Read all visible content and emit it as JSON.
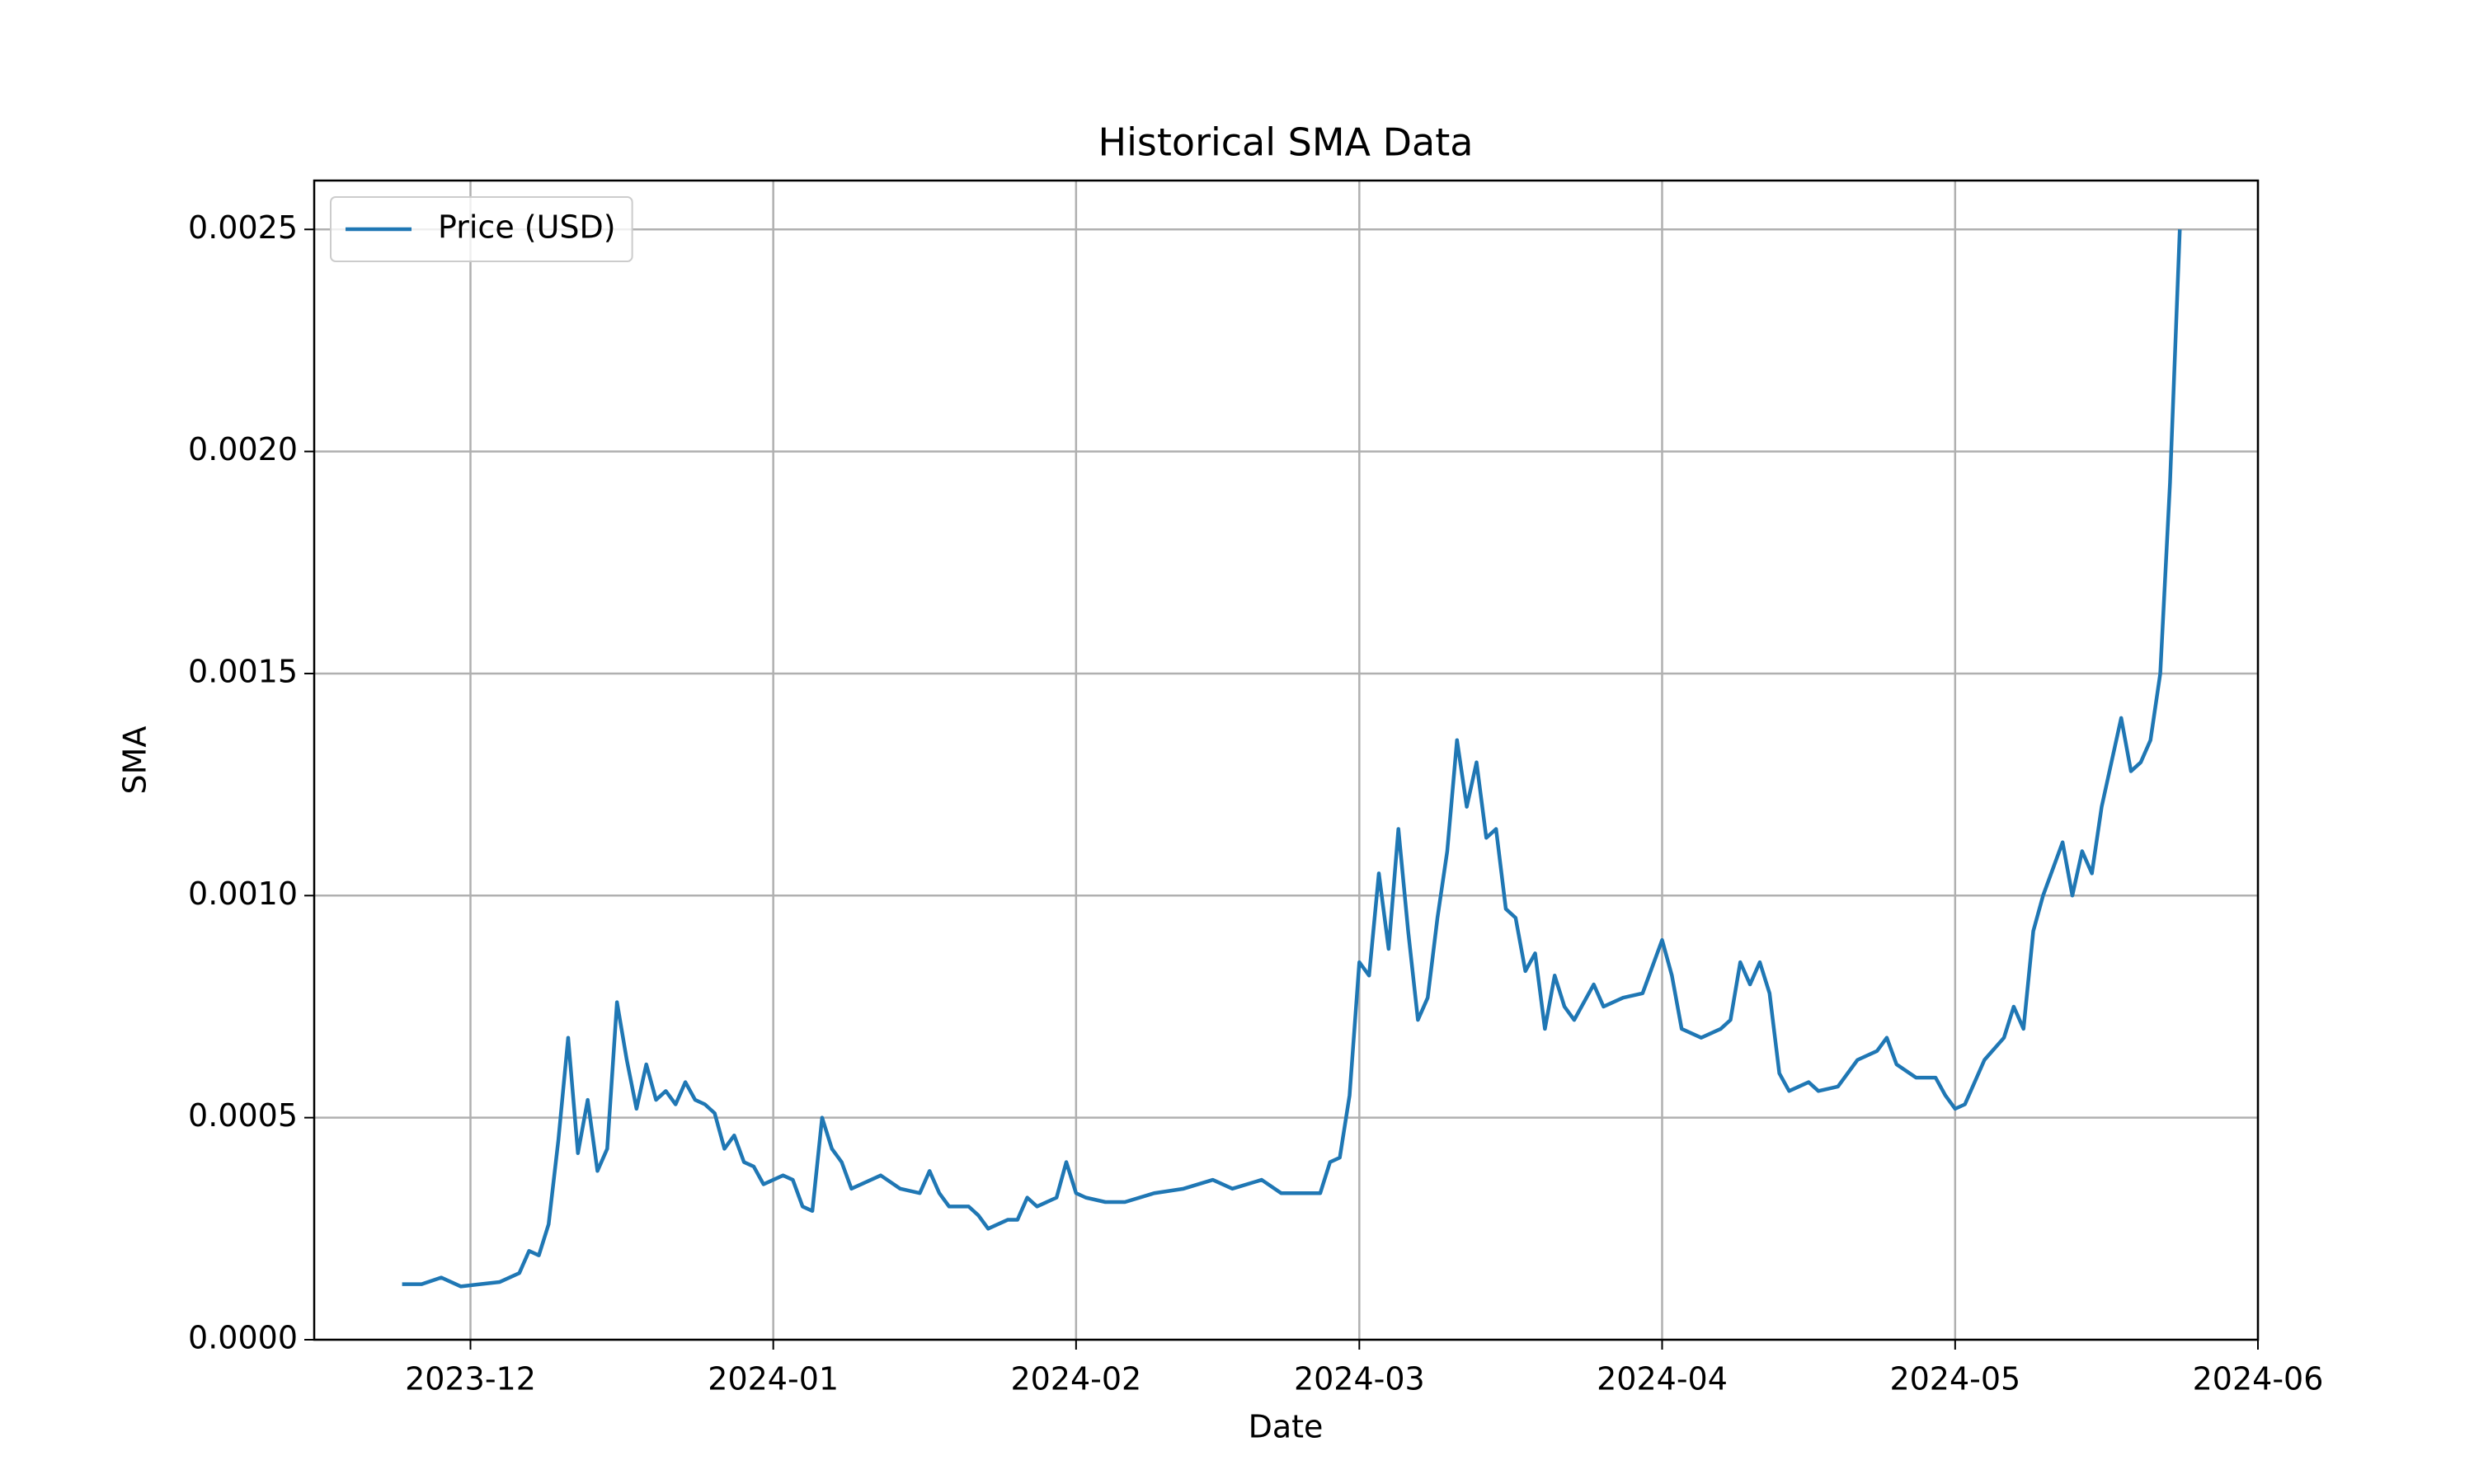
{
  "chart_data": {
    "type": "line",
    "title": "Historical SMA Data",
    "xlabel": "Date",
    "ylabel": "SMA",
    "x": [
      "2023-11-24",
      "2023-11-26",
      "2023-11-28",
      "2023-11-30",
      "2023-12-02",
      "2023-12-04",
      "2023-12-06",
      "2023-12-07",
      "2023-12-08",
      "2023-12-09",
      "2023-12-10",
      "2023-12-11",
      "2023-12-12",
      "2023-12-13",
      "2023-12-14",
      "2023-12-15",
      "2023-12-16",
      "2023-12-17",
      "2023-12-18",
      "2023-12-19",
      "2023-12-20",
      "2023-12-21",
      "2023-12-22",
      "2023-12-23",
      "2023-12-24",
      "2023-12-25",
      "2023-12-26",
      "2023-12-27",
      "2023-12-28",
      "2023-12-29",
      "2023-12-30",
      "2023-12-31",
      "2024-01-02",
      "2024-01-03",
      "2024-01-04",
      "2024-01-05",
      "2024-01-06",
      "2024-01-07",
      "2024-01-08",
      "2024-01-09",
      "2024-01-10",
      "2024-01-12",
      "2024-01-14",
      "2024-01-16",
      "2024-01-17",
      "2024-01-18",
      "2024-01-19",
      "2024-01-21",
      "2024-01-22",
      "2024-01-23",
      "2024-01-25",
      "2024-01-26",
      "2024-01-27",
      "2024-01-28",
      "2024-01-30",
      "2024-01-31",
      "2024-02-01",
      "2024-02-02",
      "2024-02-04",
      "2024-02-06",
      "2024-02-09",
      "2024-02-12",
      "2024-02-15",
      "2024-02-17",
      "2024-02-20",
      "2024-02-22",
      "2024-02-24",
      "2024-02-26",
      "2024-02-27",
      "2024-02-28",
      "2024-02-29",
      "2024-03-01",
      "2024-03-02",
      "2024-03-03",
      "2024-03-04",
      "2024-03-05",
      "2024-03-06",
      "2024-03-07",
      "2024-03-08",
      "2024-03-09",
      "2024-03-10",
      "2024-03-11",
      "2024-03-12",
      "2024-03-13",
      "2024-03-14",
      "2024-03-15",
      "2024-03-16",
      "2024-03-17",
      "2024-03-18",
      "2024-03-19",
      "2024-03-20",
      "2024-03-21",
      "2024-03-22",
      "2024-03-23",
      "2024-03-25",
      "2024-03-26",
      "2024-03-28",
      "2024-03-30",
      "2024-04-01",
      "2024-04-02",
      "2024-04-03",
      "2024-04-05",
      "2024-04-07",
      "2024-04-08",
      "2024-04-09",
      "2024-04-10",
      "2024-04-11",
      "2024-04-12",
      "2024-04-13",
      "2024-04-14",
      "2024-04-16",
      "2024-04-17",
      "2024-04-19",
      "2024-04-21",
      "2024-04-23",
      "2024-04-24",
      "2024-04-25",
      "2024-04-27",
      "2024-04-29",
      "2024-04-30",
      "2024-05-01",
      "2024-05-02",
      "2024-05-04",
      "2024-05-06",
      "2024-05-07",
      "2024-05-08",
      "2024-05-09",
      "2024-05-10",
      "2024-05-12",
      "2024-05-13",
      "2024-05-14",
      "2024-05-15",
      "2024-05-16",
      "2024-05-17",
      "2024-05-18",
      "2024-05-19",
      "2024-05-20",
      "2024-05-21",
      "2024-05-22",
      "2024-05-23",
      "2024-05-24"
    ],
    "series": [
      {
        "name": "Price (USD)",
        "color": "#1f77b4",
        "values": [
          0.000125,
          0.000125,
          0.00014,
          0.00012,
          0.000125,
          0.00013,
          0.00015,
          0.0002,
          0.00019,
          0.00026,
          0.00045,
          0.00068,
          0.00042,
          0.00054,
          0.00038,
          0.00043,
          0.00076,
          0.00063,
          0.00052,
          0.00062,
          0.00054,
          0.00056,
          0.00053,
          0.00058,
          0.00054,
          0.00053,
          0.00051,
          0.00043,
          0.00046,
          0.0004,
          0.00039,
          0.00035,
          0.00037,
          0.00036,
          0.0003,
          0.00029,
          0.0005,
          0.00043,
          0.0004,
          0.00034,
          0.00035,
          0.00037,
          0.00034,
          0.00033,
          0.00038,
          0.00033,
          0.0003,
          0.0003,
          0.00028,
          0.00025,
          0.00027,
          0.00027,
          0.00032,
          0.0003,
          0.00032,
          0.0004,
          0.00033,
          0.00032,
          0.00031,
          0.00031,
          0.00033,
          0.00034,
          0.00036,
          0.00034,
          0.00036,
          0.00033,
          0.00033,
          0.00033,
          0.0004,
          0.00041,
          0.00055,
          0.00085,
          0.00082,
          0.00105,
          0.00088,
          0.00115,
          0.00092,
          0.00072,
          0.00077,
          0.00095,
          0.0011,
          0.00135,
          0.0012,
          0.0013,
          0.00113,
          0.00115,
          0.00097,
          0.00095,
          0.00083,
          0.00087,
          0.0007,
          0.00082,
          0.00075,
          0.00072,
          0.0008,
          0.00075,
          0.00077,
          0.00078,
          0.0009,
          0.00082,
          0.0007,
          0.00068,
          0.0007,
          0.00072,
          0.00085,
          0.0008,
          0.00085,
          0.00078,
          0.0006,
          0.00056,
          0.00058,
          0.00056,
          0.00057,
          0.00063,
          0.00065,
          0.00068,
          0.00062,
          0.00059,
          0.00059,
          0.00055,
          0.00052,
          0.00053,
          0.00063,
          0.00068,
          0.00075,
          0.0007,
          0.00092,
          0.001,
          0.00112,
          0.001,
          0.0011,
          0.00105,
          0.0012,
          0.0013,
          0.0014,
          0.00128,
          0.0013,
          0.00135,
          0.0015,
          0.00193,
          0.0025
        ]
      }
    ],
    "xlim": [
      "2023-11-15",
      "2024-06-01"
    ],
    "xticks": [
      "2023-12",
      "2024-01",
      "2024-02",
      "2024-03",
      "2024-04",
      "2024-05",
      "2024-06"
    ],
    "ylim": [
      0,
      0.00261
    ],
    "yticks": [
      {
        "value": 0,
        "label": "0.0000"
      },
      {
        "value": 0.0005,
        "label": "0.0005"
      },
      {
        "value": 0.001,
        "label": "0.0010"
      },
      {
        "value": 0.0015,
        "label": "0.0015"
      },
      {
        "value": 0.002,
        "label": "0.0020"
      },
      {
        "value": 0.0025,
        "label": "0.0025"
      }
    ],
    "grid": true,
    "legend": "upper left"
  }
}
